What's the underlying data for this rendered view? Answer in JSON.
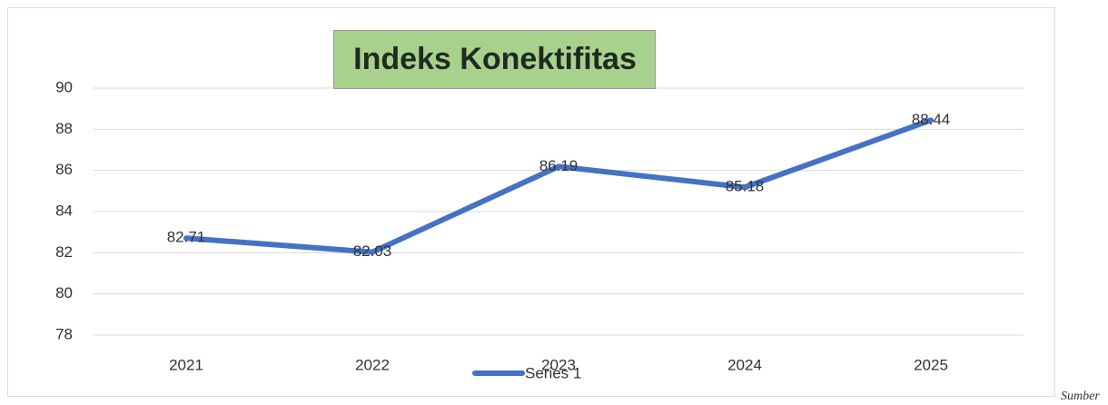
{
  "chart_data": {
    "type": "line",
    "title": "Indeks Konektifitas",
    "categories": [
      "2021",
      "2022",
      "2023",
      "2024",
      "2025"
    ],
    "series": [
      {
        "name": "Series 1",
        "color": "#4472c4",
        "values": [
          82.71,
          82.03,
          86.19,
          85.18,
          88.44
        ]
      }
    ],
    "ylim": [
      78,
      90
    ],
    "yticks": [
      78,
      80,
      82,
      84,
      86,
      88,
      90
    ],
    "grid": true,
    "legend": "bottom",
    "note": "Sumber"
  }
}
